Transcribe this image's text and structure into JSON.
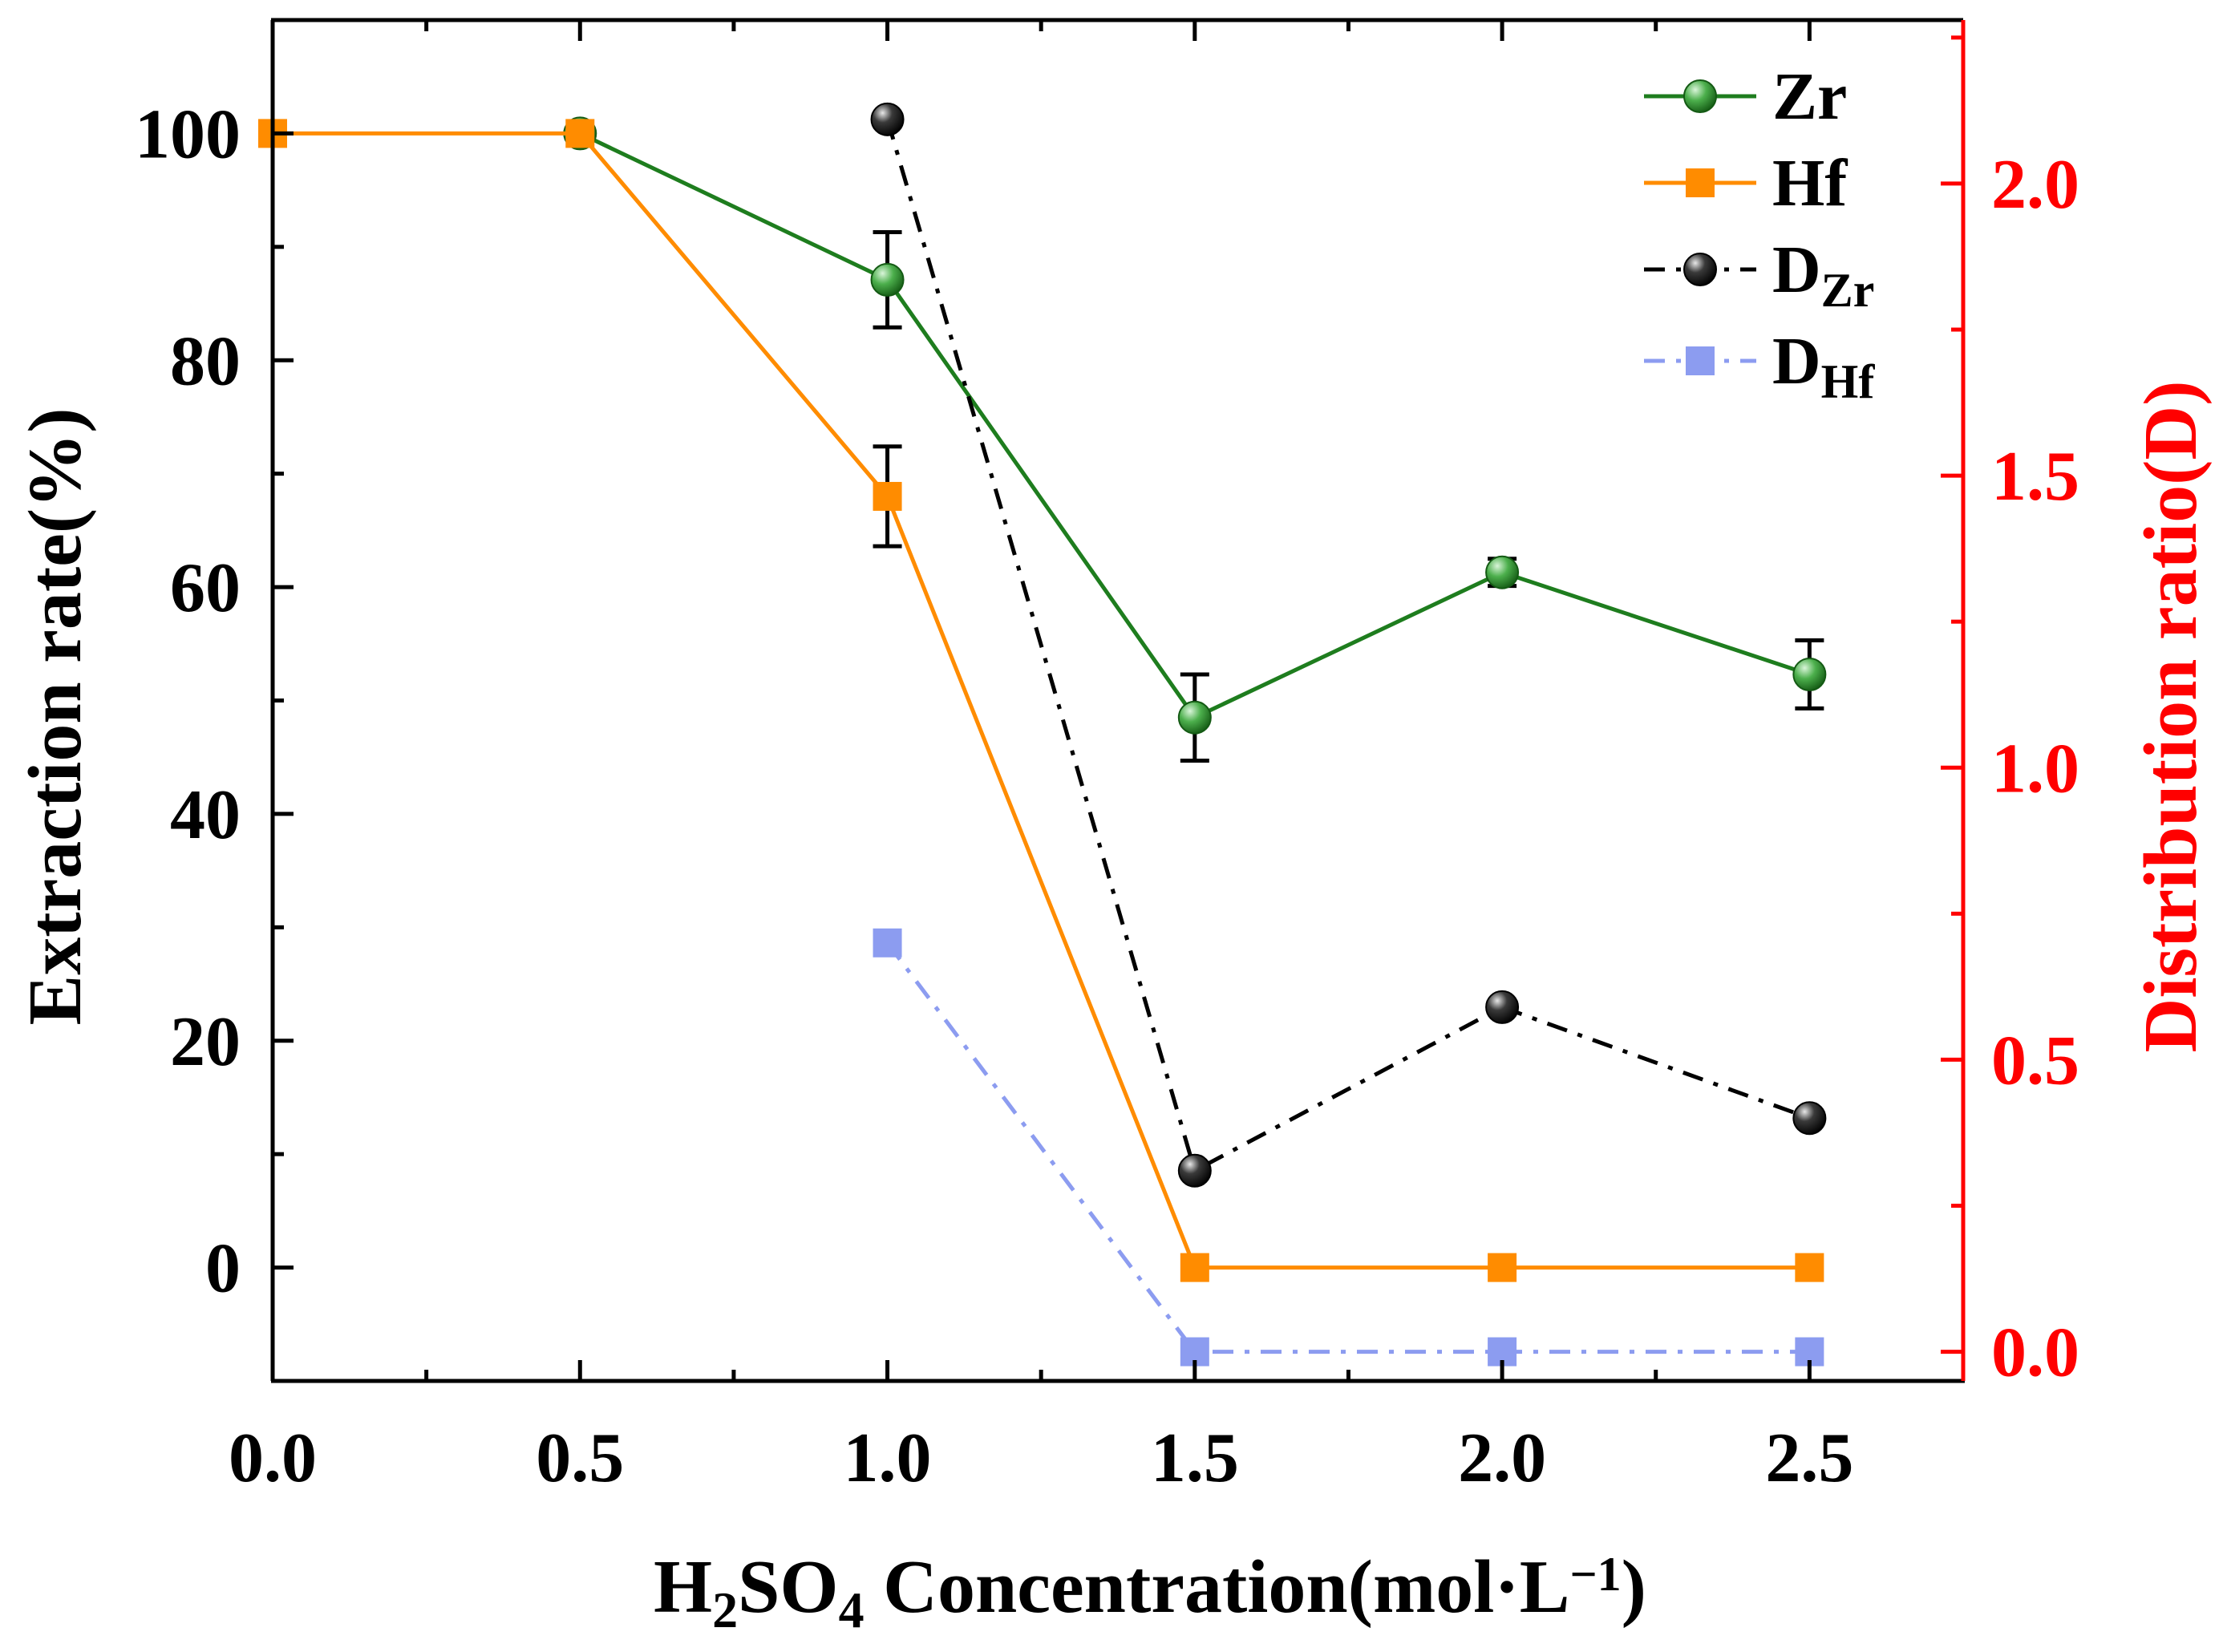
{
  "chart_data": {
    "type": "line",
    "title": "",
    "xlabel": {
      "parts": [
        {
          "t": "H",
          "s": "normal"
        },
        {
          "t": "2",
          "s": "sub"
        },
        {
          "t": "SO",
          "s": "normal"
        },
        {
          "t": "4",
          "s": "sub"
        },
        {
          "t": " Concentration(mol·L",
          "s": "normal"
        },
        {
          "t": "−1",
          "s": "sup"
        },
        {
          "t": ")",
          "s": "normal"
        }
      ]
    },
    "ylabel": "Extraction rate(%)",
    "y2label": "Distribution ratio(D)",
    "xlim": [
      0,
      2.75
    ],
    "ylim": [
      -10,
      110
    ],
    "y2lim": [
      -0.05,
      2.28
    ],
    "xticks": [
      "0.0",
      "0.5",
      "1.0",
      "1.5",
      "2.0",
      "2.5"
    ],
    "yticks": [
      "0",
      "20",
      "40",
      "60",
      "80",
      "100"
    ],
    "y2ticks": [
      "0.0",
      "0.5",
      "1.0",
      "1.5",
      "2.0"
    ],
    "axis_colors": {
      "left": "#000000",
      "right": "#ff0000"
    },
    "series": [
      {
        "id": "zr",
        "name": "Zr",
        "axis": "left",
        "color": "#1e7d1e",
        "marker": "circle",
        "line": "solid",
        "x": [
          0.5,
          1.0,
          1.5,
          2.0,
          2.5
        ],
        "y": [
          100,
          87.1,
          48.5,
          61.3,
          52.3
        ],
        "err": [
          0,
          4.2,
          3.8,
          1.2,
          3.0
        ]
      },
      {
        "id": "hf",
        "name": "Hf",
        "axis": "left",
        "color": "#ff8c00",
        "marker": "square",
        "line": "solid",
        "x": [
          0.0,
          0.5,
          1.0,
          1.5,
          2.0,
          2.5
        ],
        "y": [
          100,
          100,
          68.0,
          0,
          0,
          0
        ],
        "err": [
          0,
          0,
          4.4,
          0,
          0,
          0
        ]
      },
      {
        "id": "dzr",
        "name": "D",
        "sub": "Zr",
        "axis": "right",
        "color": "#000000",
        "marker": "circle",
        "line": "dashdot",
        "x": [
          1.0,
          1.5,
          2.0,
          2.5
        ],
        "y": [
          2.11,
          0.31,
          0.59,
          0.4
        ]
      },
      {
        "id": "dhf",
        "name": "D",
        "sub": "Hf",
        "axis": "right",
        "color": "#8c9cf0",
        "marker": "square",
        "line": "dashdot",
        "x": [
          1.0,
          1.5,
          2.0,
          2.5
        ],
        "y": [
          0.7,
          0.0,
          0.0,
          0.0
        ]
      }
    ],
    "legend": {
      "position": "top-right"
    }
  }
}
